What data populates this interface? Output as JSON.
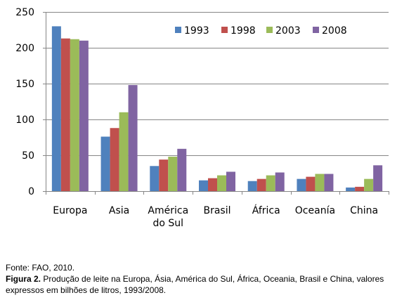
{
  "chart_data": {
    "type": "bar",
    "categories": [
      "Europa",
      "Asia",
      "América do Sul",
      "Brasil",
      "África",
      "Oceanía",
      "China"
    ],
    "category_lines": [
      [
        "Europa"
      ],
      [
        "Asia"
      ],
      [
        "América",
        "do Sul"
      ],
      [
        "Brasil"
      ],
      [
        "África"
      ],
      [
        "Oceanía"
      ],
      [
        "China"
      ]
    ],
    "series": [
      {
        "name": "1993",
        "color": "#4F81BD",
        "values": [
          230,
          76,
          35,
          15,
          14,
          17,
          5
        ]
      },
      {
        "name": "1998",
        "color": "#C0504D",
        "values": [
          213,
          88,
          44,
          18,
          17,
          20,
          6
        ]
      },
      {
        "name": "2003",
        "color": "#9BBB59",
        "values": [
          212,
          110,
          48,
          22,
          22,
          24,
          17
        ]
      },
      {
        "name": "2008",
        "color": "#8064A2",
        "values": [
          210,
          148,
          59,
          27,
          26,
          24,
          36
        ]
      }
    ],
    "ylim": [
      0,
      250
    ],
    "yticks": [
      0,
      50,
      100,
      150,
      200,
      250
    ],
    "grid": true,
    "legend_position": "top-right",
    "title": "",
    "xlabel": "",
    "ylabel": ""
  },
  "caption": {
    "source": "Fonte: FAO, 2010.",
    "figure_label": "Figura 2.",
    "figure_text": " Produção de leite na Europa, Ásia, América do Sul, África, Oceania, Brasil e China, valores expressos em bilhões de litros, 1993/2008."
  }
}
